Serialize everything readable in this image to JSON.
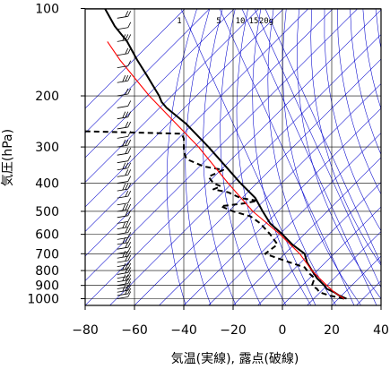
{
  "chart_data": {
    "type": "line",
    "title": "",
    "xlabel": "気温(実線), 露点(破線)",
    "ylabel": "気圧(hPa)",
    "xlim": [
      -80,
      40
    ],
    "ylim": [
      1040,
      100
    ],
    "yscale": "log",
    "x_ticks": [
      "−80",
      "−60",
      "−40",
      "−20",
      "0",
      "20",
      "40"
    ],
    "x_tick_values": [
      -80,
      -60,
      -40,
      -20,
      0,
      20,
      40
    ],
    "y_ticks": [
      "100",
      "200",
      "300",
      "400",
      "500",
      "600",
      "700",
      "800",
      "900",
      "1000"
    ],
    "y_tick_values": [
      100,
      200,
      300,
      400,
      500,
      600,
      700,
      800,
      900,
      1000
    ],
    "mixing_ratio_labels": [
      "1",
      "5",
      "10",
      "15",
      "20g"
    ],
    "grid": true,
    "series": [
      {
        "role": "temperature",
        "style": "solid",
        "color": "#000000",
        "points": [
          [
            1000,
            26
          ],
          [
            975,
            23
          ],
          [
            950,
            21
          ],
          [
            925,
            18
          ],
          [
            900,
            17
          ],
          [
            850,
            14
          ],
          [
            800,
            12
          ],
          [
            750,
            10
          ],
          [
            700,
            9
          ],
          [
            650,
            4
          ],
          [
            600,
            0
          ],
          [
            550,
            -5
          ],
          [
            500,
            -8
          ],
          [
            450,
            -11
          ],
          [
            400,
            -17
          ],
          [
            350,
            -23
          ],
          [
            300,
            -30
          ],
          [
            250,
            -39
          ],
          [
            220,
            -47
          ],
          [
            210,
            -49
          ],
          [
            200,
            -50
          ],
          [
            170,
            -55
          ],
          [
            150,
            -59
          ],
          [
            130,
            -63
          ],
          [
            115,
            -68
          ],
          [
            100,
            -72
          ]
        ]
      },
      {
        "role": "dewpoint",
        "style": "dashed",
        "color": "#000000",
        "points": [
          [
            1000,
            25
          ],
          [
            975,
            19
          ],
          [
            950,
            15
          ],
          [
            925,
            14
          ],
          [
            900,
            12
          ],
          [
            850,
            13
          ],
          [
            820,
            11
          ],
          [
            800,
            10
          ],
          [
            780,
            9
          ],
          [
            750,
            3
          ],
          [
            720,
            -3
          ],
          [
            700,
            -7
          ],
          [
            680,
            -5
          ],
          [
            650,
            -2
          ],
          [
            600,
            -5
          ],
          [
            550,
            -9
          ],
          [
            520,
            -13
          ],
          [
            500,
            -20
          ],
          [
            480,
            -25
          ],
          [
            470,
            -16
          ],
          [
            460,
            -10
          ],
          [
            450,
            -17
          ],
          [
            430,
            -22
          ],
          [
            420,
            -28
          ],
          [
            410,
            -25
          ],
          [
            400,
            -28
          ],
          [
            390,
            -29
          ],
          [
            380,
            -30
          ],
          [
            370,
            -27
          ],
          [
            360,
            -24
          ],
          [
            350,
            -32
          ],
          [
            330,
            -39
          ],
          [
            310,
            -40
          ],
          [
            280,
            -40
          ],
          [
            270,
            -41
          ],
          [
            265,
            -80
          ]
        ]
      },
      {
        "role": "parcel",
        "style": "solid",
        "color": "#ff0000",
        "points": [
          [
            1000,
            25
          ],
          [
            950,
            21
          ],
          [
            900,
            18
          ],
          [
            850,
            15
          ],
          [
            800,
            12
          ],
          [
            700,
            7
          ],
          [
            600,
            -1
          ],
          [
            500,
            -12
          ],
          [
            400,
            -22
          ],
          [
            300,
            -34
          ],
          [
            200,
            -54
          ],
          [
            150,
            -66
          ],
          [
            130,
            -71
          ]
        ]
      }
    ],
    "wind_barbs": {
      "levels_hpa": [
        1000,
        975,
        950,
        925,
        900,
        875,
        850,
        825,
        800,
        775,
        750,
        725,
        700,
        675,
        650,
        625,
        600,
        575,
        550,
        525,
        500,
        475,
        450,
        425,
        400,
        380,
        360,
        340,
        320,
        300,
        280,
        260,
        240,
        220,
        200,
        180,
        160,
        145,
        130,
        118,
        108,
        100
      ],
      "x_position": -67,
      "color": "#000000"
    },
    "colors": {
      "grid": "#000000",
      "background_lines": "#0000cc",
      "temperature": "#000000",
      "dewpoint": "#000000",
      "parcel": "#ff0000"
    }
  }
}
